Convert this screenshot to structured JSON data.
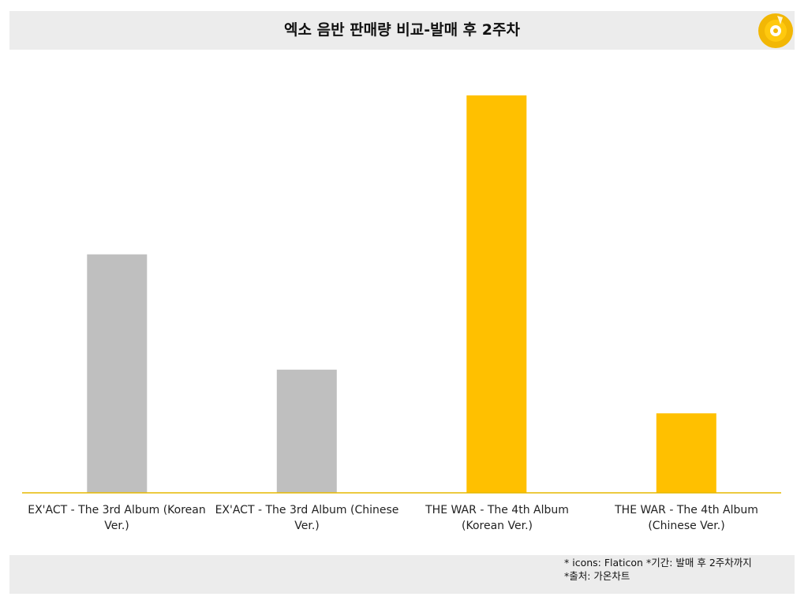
{
  "header": {
    "title": "엑소 음반 판매량 비교-발매 후 2주차",
    "icon": "disc-icon"
  },
  "colors": {
    "gray_bar": "#bfbfbf",
    "gold_bar": "#ffc000",
    "axis_line": "#e6b800",
    "panel_bg": "#ececec"
  },
  "chart_data": {
    "type": "bar",
    "categories": [
      "EX'ACT - The 3rd Album (Korean Ver.)",
      "EX'ACT - The 3rd Album (Chinese Ver.)",
      "THE WAR - The 4th Album (Korean Ver.)",
      "THE WAR - The 4th Album (Chinese Ver.)"
    ],
    "category_lines": [
      [
        "EX'ACT - The 3rd Album (Korean",
        "Ver.)"
      ],
      [
        "EX'ACT - The 3rd Album (Chinese",
        "Ver.)"
      ],
      [
        "THE WAR - The 4th Album",
        "(Korean Ver.)"
      ],
      [
        "THE WAR - The 4th Album",
        "(Chinese Ver.)"
      ]
    ],
    "values": [
      60,
      31,
      100,
      20
    ],
    "bar_colors": [
      "#bfbfbf",
      "#bfbfbf",
      "#ffc000",
      "#ffc000"
    ],
    "ylim": [
      0,
      100
    ],
    "grid": false,
    "legend": "none"
  },
  "footer": {
    "note_line1": "* icons: Flaticon *기간: 발매 후 2주차까지",
    "note_line2": "*출처: 가온차트"
  }
}
